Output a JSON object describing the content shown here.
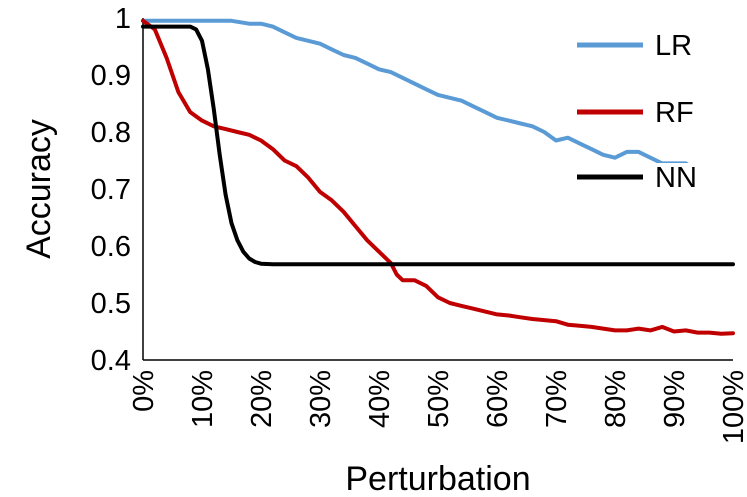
{
  "chart_data": {
    "type": "line",
    "title": "",
    "xlabel": "Perturbation",
    "ylabel": "Accuracy",
    "xlim": [
      0,
      100
    ],
    "ylim": [
      0.4,
      1.0
    ],
    "x_ticks": [
      "0%",
      "10%",
      "20%",
      "30%",
      "40%",
      "50%",
      "60%",
      "70%",
      "80%",
      "90%",
      "100%"
    ],
    "y_ticks": [
      "0.4",
      "0.5",
      "0.6",
      "0.7",
      "0.8",
      "0.9",
      "1"
    ],
    "grid": false,
    "legend_position": "right",
    "series": [
      {
        "name": "LR",
        "color": "#5B9BD5",
        "x": [
          0,
          5,
          10,
          15,
          18,
          20,
          22,
          24,
          26,
          28,
          30,
          32,
          34,
          36,
          38,
          40,
          42,
          44,
          46,
          48,
          50,
          52,
          54,
          56,
          58,
          60,
          62,
          64,
          66,
          68,
          70,
          72,
          74,
          76,
          78,
          80,
          82,
          84,
          86,
          88,
          90,
          92,
          94,
          96,
          98,
          100
        ],
        "y": [
          0.995,
          0.995,
          0.995,
          0.995,
          0.99,
          0.99,
          0.985,
          0.975,
          0.965,
          0.96,
          0.955,
          0.945,
          0.935,
          0.93,
          0.92,
          0.91,
          0.905,
          0.895,
          0.885,
          0.875,
          0.865,
          0.86,
          0.855,
          0.845,
          0.835,
          0.825,
          0.82,
          0.815,
          0.81,
          0.8,
          0.785,
          0.79,
          0.78,
          0.77,
          0.76,
          0.755,
          0.765,
          0.765,
          0.755,
          0.745,
          0.745,
          0.745,
          0.73,
          0.72,
          0.715,
          0.725
        ]
      },
      {
        "name": "RF",
        "color": "#C00000",
        "x": [
          0,
          2,
          4,
          6,
          8,
          10,
          12,
          14,
          16,
          18,
          20,
          22,
          24,
          26,
          28,
          30,
          32,
          34,
          36,
          38,
          40,
          42,
          43,
          44,
          46,
          48,
          50,
          52,
          54,
          56,
          58,
          60,
          62,
          64,
          66,
          68,
          70,
          72,
          74,
          76,
          78,
          80,
          82,
          84,
          86,
          88,
          90,
          92,
          94,
          96,
          98,
          100
        ],
        "y": [
          0.995,
          0.98,
          0.93,
          0.87,
          0.835,
          0.82,
          0.81,
          0.805,
          0.8,
          0.795,
          0.785,
          0.77,
          0.75,
          0.74,
          0.72,
          0.695,
          0.68,
          0.66,
          0.635,
          0.61,
          0.59,
          0.57,
          0.55,
          0.54,
          0.54,
          0.53,
          0.51,
          0.5,
          0.495,
          0.49,
          0.485,
          0.48,
          0.478,
          0.475,
          0.472,
          0.47,
          0.468,
          0.462,
          0.46,
          0.458,
          0.455,
          0.452,
          0.452,
          0.455,
          0.452,
          0.458,
          0.45,
          0.452,
          0.448,
          0.448,
          0.446,
          0.447
        ]
      },
      {
        "name": "NN",
        "color": "#000000",
        "x": [
          0,
          5,
          8,
          9,
          10,
          11,
          12,
          13,
          14,
          15,
          16,
          17,
          18,
          19,
          20,
          22,
          24,
          26,
          30,
          40,
          50,
          60,
          70,
          80,
          90,
          100
        ],
        "y": [
          0.985,
          0.985,
          0.985,
          0.98,
          0.96,
          0.91,
          0.84,
          0.76,
          0.69,
          0.64,
          0.61,
          0.59,
          0.578,
          0.572,
          0.569,
          0.568,
          0.568,
          0.568,
          0.568,
          0.568,
          0.568,
          0.568,
          0.568,
          0.568,
          0.568,
          0.568
        ]
      }
    ]
  }
}
